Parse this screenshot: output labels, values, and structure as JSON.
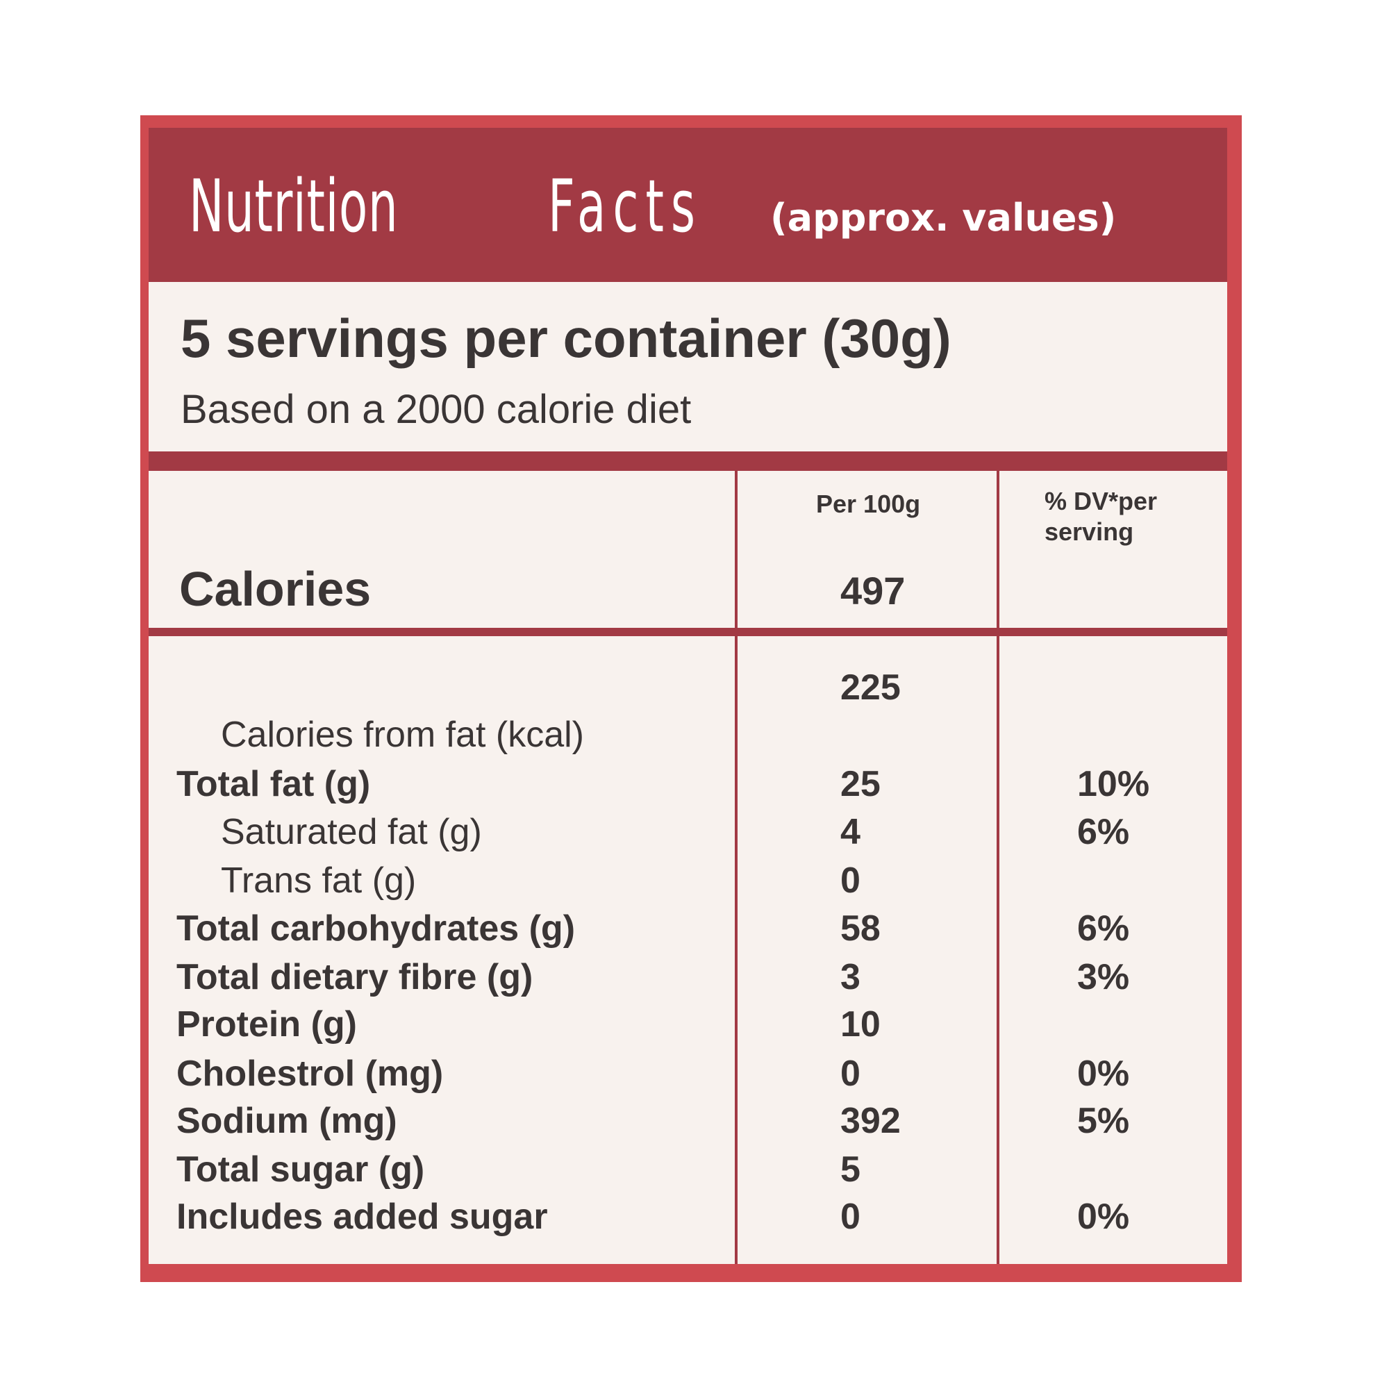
{
  "title": {
    "main": "Nutrition",
    "second": "Facts",
    "note": "(approx. values)"
  },
  "servings": {
    "line": "5 servings per container (30g)",
    "basis": "Based on a 2000 calorie diet"
  },
  "columns": {
    "per100": "Per 100g",
    "dv_line1": "% DV*per",
    "dv_line2": "serving"
  },
  "calories": {
    "label": "Calories",
    "value": "497"
  },
  "rows": [
    {
      "label": "Calories from fat (kcal)",
      "value": "225",
      "dv": ""
    },
    {
      "label": "Total fat (g)",
      "value": "25",
      "dv": "10%"
    },
    {
      "label": "Saturated fat (g)",
      "value": "4",
      "dv": "6%"
    },
    {
      "label": "Trans fat (g)",
      "value": "0",
      "dv": ""
    },
    {
      "label": "Total carbohydrates (g)",
      "value": "58",
      "dv": "6%"
    },
    {
      "label": "Total dietary fibre (g)",
      "value": "3",
      "dv": "3%"
    },
    {
      "label": "Protein (g)",
      "value": "10",
      "dv": ""
    },
    {
      "label": "Cholestrol (mg)",
      "value": "0",
      "dv": "0%"
    },
    {
      "label": "Sodium (mg)",
      "value": "392",
      "dv": "5%"
    },
    {
      "label": "Total sugar (g)",
      "value": "5",
      "dv": ""
    },
    {
      "label": "Includes added sugar",
      "value": "0",
      "dv": "0%"
    }
  ],
  "colors": {
    "border": "#cf4a50",
    "header": "#a23a44",
    "panel": "#f8f2ee",
    "text": "#3a3535"
  }
}
